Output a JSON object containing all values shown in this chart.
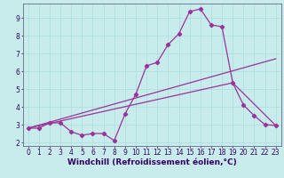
{
  "title": "",
  "xlabel": "Windchill (Refroidissement éolien,°C)",
  "bg_color": "#c8ecec",
  "line_color": "#993399",
  "grid_color": "#aadddd",
  "xlim": [
    -0.5,
    23.5
  ],
  "ylim": [
    1.8,
    9.8
  ],
  "xticks": [
    0,
    1,
    2,
    3,
    4,
    5,
    6,
    7,
    8,
    9,
    10,
    11,
    12,
    13,
    14,
    15,
    16,
    17,
    18,
    19,
    20,
    21,
    22,
    23
  ],
  "yticks": [
    2,
    3,
    4,
    5,
    6,
    7,
    8,
    9
  ],
  "line1_x": [
    0,
    1,
    2,
    3,
    4,
    5,
    6,
    7,
    8,
    9,
    10,
    11,
    12,
    13,
    14,
    15,
    16,
    17,
    18,
    19,
    20,
    21,
    22,
    23
  ],
  "line1_y": [
    2.8,
    2.8,
    3.1,
    3.1,
    2.6,
    2.4,
    2.5,
    2.5,
    2.1,
    3.6,
    4.7,
    6.3,
    6.5,
    7.5,
    8.1,
    9.35,
    9.5,
    8.6,
    8.5,
    5.35,
    4.1,
    3.5,
    3.0,
    2.95
  ],
  "line2_x": [
    0,
    23
  ],
  "line2_y": [
    2.8,
    6.7
  ],
  "line3_x": [
    0,
    19,
    23
  ],
  "line3_y": [
    2.8,
    5.35,
    2.95
  ],
  "marker": "D",
  "marker_size": 2.2,
  "line_width": 0.9,
  "xlabel_fontsize": 6.5,
  "tick_fontsize": 5.5,
  "tick_color": "#330066",
  "xlabel_color": "#330066",
  "spine_color": "#666688"
}
